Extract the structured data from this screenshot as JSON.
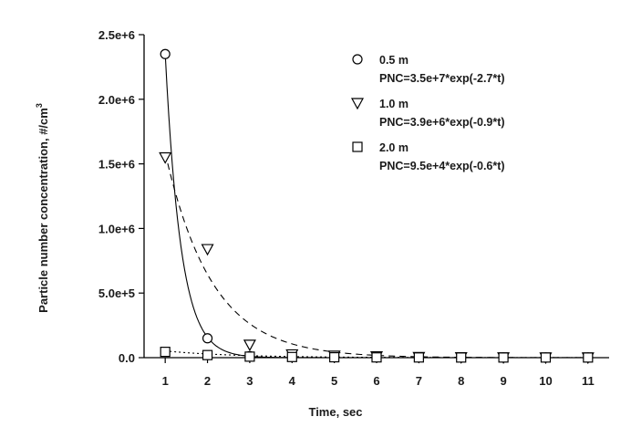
{
  "chart_data": {
    "type": "scatter",
    "xlabel": "Time, sec",
    "ylabel": "Particle number concentration, #/cm",
    "ylabel_superscript": "3",
    "xlim": [
      0.5,
      11.5
    ],
    "ylim": [
      0,
      2500000
    ],
    "x_ticks": [
      1,
      2,
      3,
      4,
      5,
      6,
      7,
      8,
      9,
      10,
      11
    ],
    "x_tick_labels": [
      "1",
      "2",
      "3",
      "4",
      "5",
      "6",
      "7",
      "8",
      "9",
      "10",
      "11"
    ],
    "y_ticks": [
      0,
      500000,
      1000000,
      1500000,
      2000000,
      2500000
    ],
    "y_tick_labels": [
      "0.0",
      "5.0e+5",
      "1.0e+6",
      "1.5e+6",
      "2.0e+6",
      "2.5e+6"
    ],
    "grid": false,
    "legend_position": "top-right",
    "series": [
      {
        "name": "0.5 m",
        "equation": "PNC=3.5e+7*exp(-2.7*t)",
        "marker": "circle",
        "line_style": "solid",
        "fit": {
          "a": 35000000,
          "b": -2.7
        },
        "x": [
          1,
          2,
          3,
          4,
          5,
          6,
          7,
          8,
          9,
          10,
          11
        ],
        "y": [
          2350000,
          150000,
          12000,
          8000,
          5000,
          4000,
          3000,
          2000,
          1000,
          1000,
          1000
        ]
      },
      {
        "name": "1.0 m",
        "equation": "PNC=3.9e+6*exp(-0.9*t)",
        "marker": "triangle-down",
        "line_style": "dashed",
        "fit": {
          "a": 3900000,
          "b": -0.9
        },
        "x": [
          1,
          2,
          3,
          4,
          5,
          6,
          7,
          8,
          9,
          10,
          11
        ],
        "y": [
          1550000,
          840000,
          100000,
          25000,
          15000,
          10000,
          5000,
          3000,
          2000,
          1000,
          1000
        ]
      },
      {
        "name": "2.0 m",
        "equation": "PNC=9.5e+4*exp(-0.6*t)",
        "marker": "square",
        "line_style": "dotted",
        "fit": {
          "a": 95000,
          "b": -0.6
        },
        "x": [
          1,
          2,
          3,
          4,
          5,
          6,
          7,
          8,
          9,
          10,
          11
        ],
        "y": [
          45000,
          20000,
          8000,
          5000,
          3000,
          2000,
          1500,
          1000,
          1000,
          1000,
          1000
        ]
      }
    ]
  }
}
